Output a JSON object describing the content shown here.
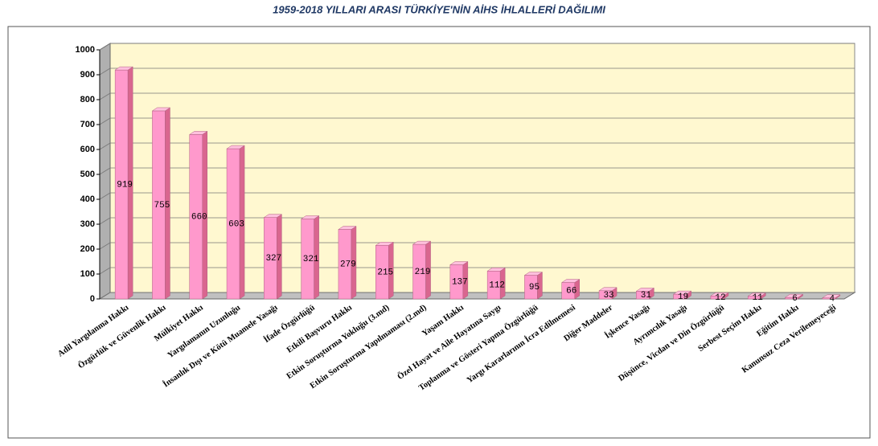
{
  "chart_data": {
    "type": "bar",
    "title": "1959-2018 YILLARI ARASI TÜRKİYE'NİN AİHS İHLALLERİ DAĞILIMI",
    "categories": [
      "Adil Yargılanma Hakkı",
      "Özgürlük ve Güvenlik Hakkı",
      "Mülkiyet Hakkı",
      "Yargılamanın Uzunluğu",
      "İnsanlık Dışı ve Kötü Muamele Yasağı",
      "İfade Özgürlüğü",
      "Etkili Başvuru Hakkı",
      "Etkin Soruşturma Yokluğu (3.md)",
      "Etkin Soruşturma Yapılmaması (2.md)",
      "Yaşam Hakkı",
      "Özel Hayat ve Aile Hayatına Saygı",
      "Toplanma ve Gösteri Yapma Özgürlüğü",
      "Yargı Kararlarının İcra Edilmemesi",
      "Diğer Maddeler",
      "İşkence Yasağı",
      "Ayrımcılık Yasağı",
      "Düşünce, Vicdan ve Din Özgürlüğü",
      "Serbest Seçim Hakkı",
      "Eğitim Hakkı",
      "Kanunsuz Ceza Verilemeyeceği"
    ],
    "values": [
      919,
      755,
      660,
      603,
      327,
      321,
      279,
      215,
      219,
      137,
      112,
      95,
      66,
      33,
      31,
      19,
      12,
      11,
      6,
      4
    ],
    "color": "#ff99cc",
    "ylim": [
      0,
      1000
    ],
    "yticks": [
      0,
      100,
      200,
      300,
      400,
      500,
      600,
      700,
      800,
      900,
      1000
    ],
    "grid": true
  }
}
